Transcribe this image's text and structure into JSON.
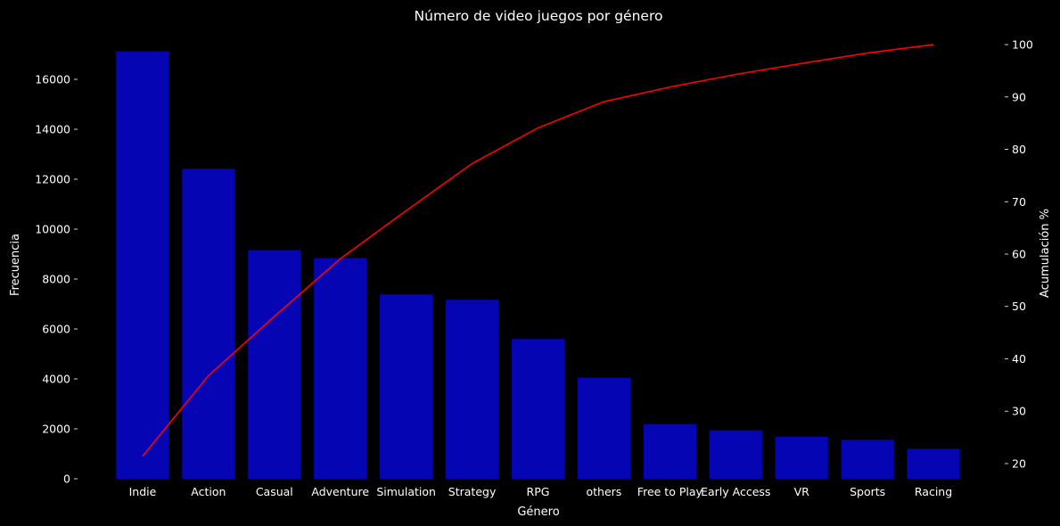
{
  "chart_data": {
    "type": "bar",
    "title": "Número de video juegos por género",
    "xlabel": "Género",
    "ylabel": "Frecuencia",
    "y2label": "Acumulación %",
    "categories": [
      "Indie",
      "Action",
      "Casual",
      "Adventure",
      "Simulation",
      "Strategy",
      "RPG",
      "others",
      "Free to Play",
      "Early Access",
      "VR",
      "Sports",
      "Racing"
    ],
    "series": [
      {
        "type": "bar",
        "axis": "left",
        "values": [
          17120,
          12420,
          9160,
          8840,
          7380,
          7170,
          5600,
          4050,
          2190,
          1940,
          1680,
          1560,
          1200
        ]
      },
      {
        "type": "line",
        "axis": "right",
        "values": [
          21.4,
          36.8,
          48.1,
          59.1,
          68.3,
          77.3,
          84.1,
          89.1,
          91.9,
          94.3,
          96.4,
          98.4,
          100.0
        ]
      }
    ],
    "ylim": [
      0,
      18000
    ],
    "yticks": [
      0,
      2000,
      4000,
      6000,
      8000,
      10000,
      12000,
      14000,
      16000
    ],
    "y2lim": [
      17.1,
      102.9
    ],
    "y2ticks": [
      20,
      30,
      40,
      50,
      60,
      70,
      80,
      90,
      100
    ],
    "grid": false,
    "legend": "none",
    "colors": {
      "bar": "#0505b4",
      "line": "#ff0000",
      "background": "#000000",
      "text": "#ffffff"
    }
  }
}
